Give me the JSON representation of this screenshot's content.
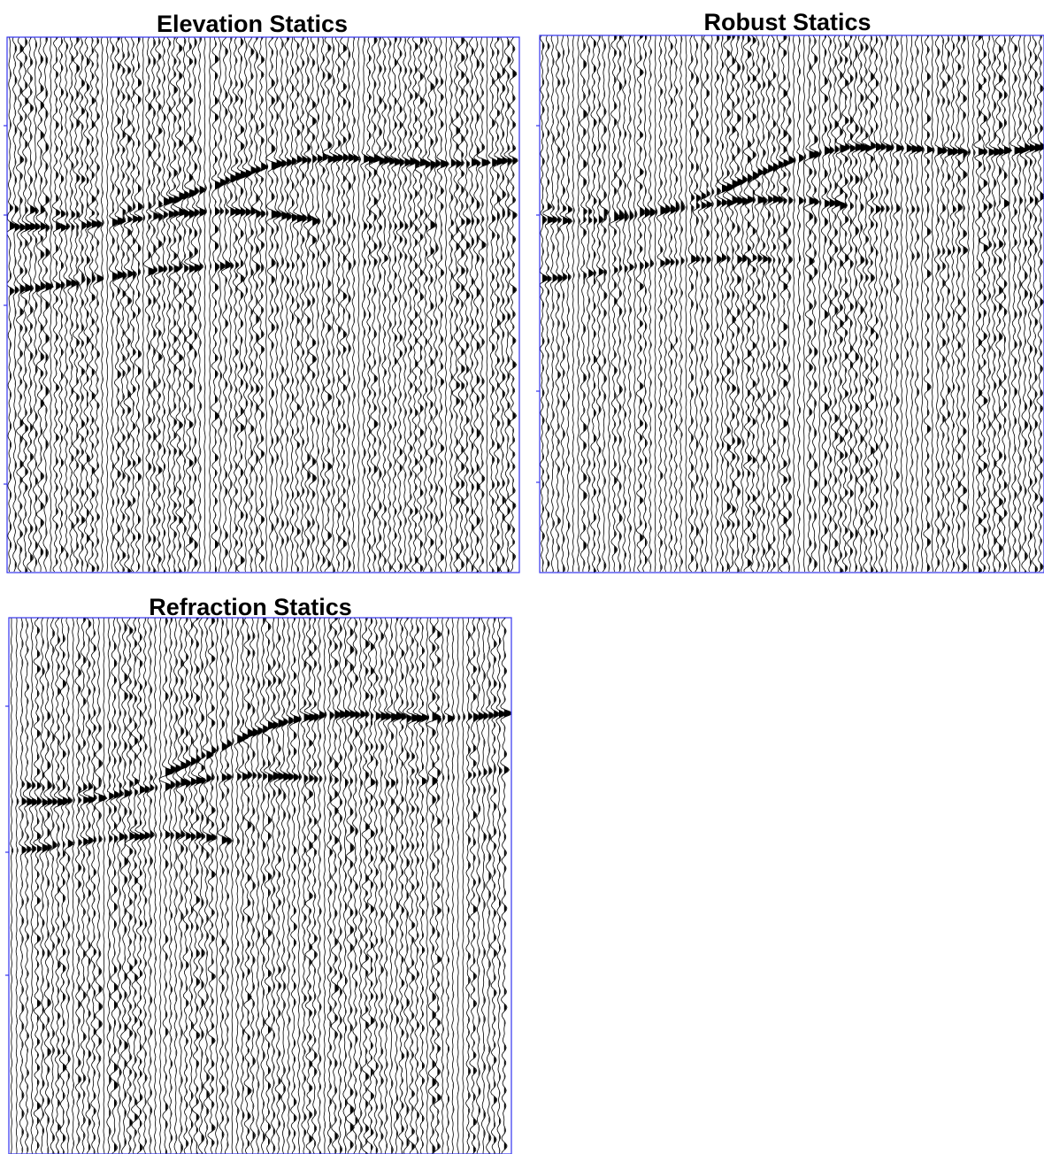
{
  "panels": [
    {
      "title": "Elevation Statics"
    },
    {
      "title": "Robust Statics"
    },
    {
      "title": "Refraction Statics"
    }
  ]
}
